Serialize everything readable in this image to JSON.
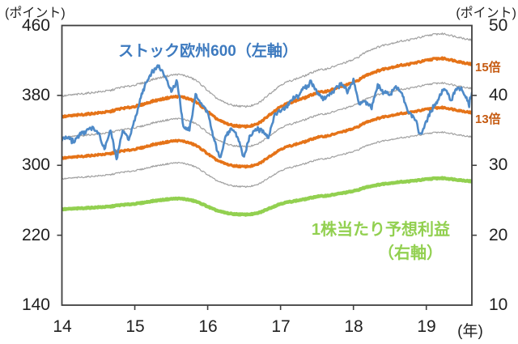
{
  "chart_data": {
    "type": "line",
    "title": "",
    "left_axis": {
      "unit": "(ポイント)",
      "ticks": [
        460,
        380,
        300,
        220,
        140
      ],
      "min": 140,
      "max": 460
    },
    "right_axis": {
      "unit": "(ポイント)",
      "ticks": [
        50,
        40,
        30,
        20,
        10
      ],
      "min": 10,
      "max": 50
    },
    "x_axis": {
      "ticks": [
        "14",
        "15",
        "16",
        "17",
        "18",
        "19"
      ],
      "tick_positions": [
        14,
        15,
        16,
        17,
        18,
        19
      ],
      "unit": "(年)",
      "min": 14,
      "max": 19.625
    },
    "annotations": {
      "stoxx_label": "ストック欧州600（左軸）",
      "eps_label_line1": "1株当たり予想利益",
      "eps_label_line2": "（右軸）",
      "band15_label": "15倍",
      "band13_label": "13倍"
    },
    "x": [
      14.0,
      14.083,
      14.167,
      14.25,
      14.333,
      14.417,
      14.5,
      14.583,
      14.667,
      14.75,
      14.833,
      14.917,
      15.0,
      15.083,
      15.167,
      15.25,
      15.333,
      15.417,
      15.5,
      15.583,
      15.667,
      15.75,
      15.833,
      15.917,
      16.0,
      16.083,
      16.167,
      16.25,
      16.333,
      16.417,
      16.5,
      16.583,
      16.667,
      16.75,
      16.833,
      16.917,
      17.0,
      17.083,
      17.167,
      17.25,
      17.333,
      17.417,
      17.5,
      17.583,
      17.667,
      17.75,
      17.833,
      17.917,
      18.0,
      18.083,
      18.167,
      18.25,
      18.333,
      18.417,
      18.5,
      18.583,
      18.667,
      18.75,
      18.833,
      18.917,
      19.0,
      19.083,
      19.167,
      19.25,
      19.333,
      19.417,
      19.5,
      19.583,
      19.625
    ],
    "series": [
      {
        "name": "ストック欧州600",
        "axis": "left",
        "color": "#4e8ac8",
        "line_width": 2.6,
        "values": [
          330,
          332,
          327,
          335,
          341,
          342,
          337,
          318,
          340,
          308,
          341,
          330,
          352,
          378,
          396,
          408,
          414,
          402,
          386,
          396,
          344,
          340,
          380,
          370,
          360,
          330,
          308,
          334,
          342,
          332,
          308,
          336,
          342,
          340,
          332,
          358,
          362,
          368,
          376,
          380,
          390,
          395,
          384,
          376,
          380,
          388,
          394,
          384,
          398,
          370,
          374,
          366,
          392,
          384,
          380,
          390,
          382,
          362,
          356,
          334,
          350,
          366,
          376,
          390,
          374,
          388,
          386,
          370,
          383
        ]
      },
      {
        "name": "1株当たり予想利益",
        "axis": "right",
        "color": "#92d050",
        "line_width": 4.4,
        "values": [
          23.7,
          23.75,
          23.8,
          23.85,
          23.9,
          23.95,
          24.0,
          24.05,
          24.1,
          24.25,
          24.35,
          24.4,
          24.5,
          24.6,
          24.75,
          24.9,
          25.0,
          25.1,
          25.2,
          25.25,
          25.2,
          25.05,
          24.85,
          24.5,
          24.1,
          23.7,
          23.4,
          23.2,
          23.05,
          23.0,
          22.95,
          23.0,
          23.1,
          23.4,
          23.8,
          24.15,
          24.5,
          24.7,
          24.85,
          25.0,
          25.15,
          25.35,
          25.55,
          25.6,
          25.7,
          25.85,
          26.0,
          26.15,
          26.3,
          26.55,
          26.85,
          27.05,
          27.2,
          27.35,
          27.45,
          27.55,
          27.65,
          27.7,
          27.8,
          27.9,
          28.0,
          28.1,
          28.15,
          28.15,
          28.05,
          27.95,
          27.85,
          27.75,
          27.7
        ]
      }
    ],
    "per_bands": {
      "note": "EPS × multiple plotted on left axis",
      "multiples": [
        12,
        13,
        14,
        15,
        16
      ],
      "highlighted_multiples": [
        13,
        15
      ],
      "gray_color": "#a0a0a0",
      "orange_color": "#e57318"
    },
    "layout": {
      "grid": false,
      "plot_border": true
    }
  },
  "colors": {
    "background": "#ffffff",
    "axis": "#3f3f3f",
    "tick_text": "#1f1f1f",
    "stoxx_line": "#4e8ac8",
    "stoxx_label": "#3d7abf",
    "eps_line": "#92d050",
    "band_orange": "#e57318",
    "band_label": "#c55a11",
    "band_gray": "#a0a0a0"
  }
}
